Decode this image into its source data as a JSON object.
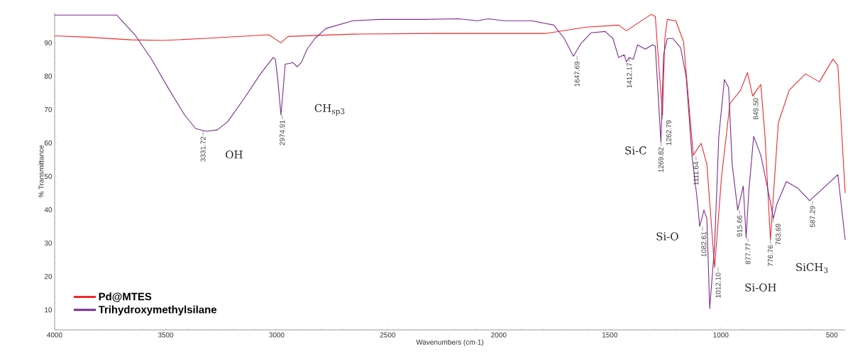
{
  "chart_data": {
    "type": "line",
    "xlabel": "Wavenumbers (cm-1)",
    "ylabel": "% Transmittance",
    "xlim": [
      4000,
      440
    ],
    "ylim": [
      4,
      99
    ],
    "xticks": [
      4000,
      3500,
      3000,
      2500,
      2000,
      1500,
      1000,
      500
    ],
    "yticks": [
      10,
      20,
      30,
      40,
      50,
      60,
      70,
      80,
      90
    ],
    "grid": false,
    "legend": "bottom left",
    "marker": "none",
    "line_style": "solid",
    "series": [
      {
        "name": "Pd@MTES",
        "color": "#ee2a2a",
        "x": [
          4000,
          3854,
          3657,
          3511,
          3330,
          3035,
          2981,
          2949,
          2657,
          2292,
          2219,
          1790,
          1606,
          1460,
          1425,
          1387,
          1314,
          1295,
          1262.79,
          1252,
          1241,
          1203,
          1168,
          1124,
          1089,
          1063,
          1028,
          997,
          959,
          911,
          880,
          857,
          820,
          801,
          776.76,
          741,
          692,
          619,
          556,
          495,
          473,
          440
        ],
        "values": [
          92.1,
          91.7,
          90.9,
          90.7,
          91.3,
          92.4,
          90,
          91.9,
          92.6,
          92.8,
          92.8,
          92.8,
          94.7,
          95.3,
          93.6,
          95.3,
          98.5,
          97.9,
          68.4,
          91.3,
          97,
          96.6,
          90.4,
          56.3,
          59.9,
          53.7,
          22.7,
          49.7,
          71.8,
          75.8,
          81.1,
          74.1,
          77.5,
          62,
          31,
          66,
          75.8,
          80.7,
          78.3,
          85.1,
          83.2,
          45
        ]
      },
      {
        "name": "Trihydroxymethylsilane",
        "color": "#7b2d8e",
        "x": [
          4000,
          3720,
          3635,
          3560,
          3490,
          3415,
          3365,
          3317,
          3267,
          3219,
          3146,
          3073,
          3016,
          3006,
          2994,
          2981,
          2968,
          2962,
          2937,
          2927,
          2908,
          2889,
          2863,
          2828,
          2778,
          2657,
          2537,
          2340,
          2181,
          2095,
          2048,
          1975,
          1851,
          1752,
          1705,
          1664,
          1632,
          1584,
          1521,
          1486,
          1460,
          1435,
          1425,
          1413,
          1394,
          1375,
          1340,
          1308,
          1295,
          1269.82,
          1258,
          1241,
          1216,
          1181,
          1156,
          1130,
          1108,
          1095,
          1076,
          1063,
          1050,
          1028,
          1009,
          984,
          965,
          949,
          924,
          899,
          886,
          874,
          852,
          820,
          807,
          776,
          763.69,
          748,
          705,
          654,
          600,
          473,
          440
        ],
        "values": [
          98.3,
          98.3,
          92.1,
          84.7,
          76.6,
          68.4,
          64.3,
          63.5,
          63.9,
          66.5,
          73.4,
          80.7,
          85.6,
          85.1,
          78.3,
          68.4,
          78.3,
          83.6,
          83.9,
          84.1,
          82.8,
          84.1,
          88.1,
          91.3,
          94.3,
          96.6,
          97,
          97,
          97.2,
          96.6,
          97.2,
          96.6,
          96.6,
          95.3,
          91.3,
          86,
          89.6,
          93,
          93.4,
          91.3,
          85.6,
          86.4,
          84.3,
          85.6,
          85.1,
          89.4,
          88.1,
          89.4,
          89,
          60.3,
          86.4,
          91.3,
          91.3,
          88.5,
          79.8,
          56.3,
          44,
          35,
          39.9,
          37.4,
          10.4,
          29.3,
          62,
          79,
          76.6,
          53.7,
          39.9,
          47.1,
          31.6,
          45.6,
          62,
          56.3,
          52.2,
          42,
          37.4,
          41.6,
          48.4,
          46.5,
          42.7,
          50.5,
          31
        ]
      }
    ],
    "annotations": [
      {
        "text": "3331.72",
        "x": 3331.72,
        "y": 63.5
      },
      {
        "text": "2974.91",
        "x": 2974.91,
        "y": 68.4
      },
      {
        "text": "1647.69",
        "x": 1647.69,
        "y": 86
      },
      {
        "text": "1412.17",
        "x": 1412.17,
        "y": 85.6
      },
      {
        "text": "1269.82",
        "x": 1269.82,
        "y": 60.3
      },
      {
        "text": "1262.79",
        "x": 1262.79,
        "y": 68.4
      },
      {
        "text": "1111.64",
        "x": 1111.64,
        "y": 56
      },
      {
        "text": "1082.61",
        "x": 1082.61,
        "y": 35
      },
      {
        "text": "1012.10",
        "x": 1012.1,
        "y": 22.7
      },
      {
        "text": "915.66",
        "x": 915.66,
        "y": 39.9
      },
      {
        "text": "877.77",
        "x": 877.77,
        "y": 31.6
      },
      {
        "text": "849.50",
        "x": 849.5,
        "y": 75
      },
      {
        "text": "776.76",
        "x": 776.76,
        "y": 31
      },
      {
        "text": "763.69",
        "x": 763.69,
        "y": 37.4
      },
      {
        "text": "587.29",
        "x": 587.29,
        "y": 42.7
      },
      "OH",
      "CH$_{sp3}$",
      "Si-C",
      "Si-O",
      "Si-OH",
      "SiCH$_{3}$"
    ]
  }
}
